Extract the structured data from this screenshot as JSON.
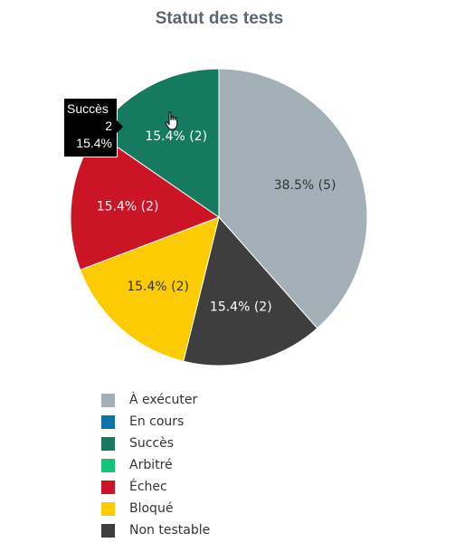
{
  "chart_data": {
    "type": "pie",
    "title": "Statut des tests",
    "slices": [
      {
        "name": "À exécuter",
        "value": 5,
        "color": "#a3b0b7",
        "label": "38.5% (5)"
      },
      {
        "name": "En cours",
        "value": 0,
        "color": "#0e74a8",
        "label": ""
      },
      {
        "name": "Succès",
        "value": 2,
        "color": "#167a61",
        "label": "15.4% (2)"
      },
      {
        "name": "Arbitré",
        "value": 0,
        "color": "#13c47b",
        "label": ""
      },
      {
        "name": "Échec",
        "value": 2,
        "color": "#cc1427",
        "label": "15.4% (2)"
      },
      {
        "name": "Bloqué",
        "value": 2,
        "color": "#fdcb02",
        "label": "15.4% (2)"
      },
      {
        "name": "Non testable",
        "value": 2,
        "color": "#3e3e3e",
        "label": "15.4% (2)"
      }
    ],
    "slice_order": [
      "À exécuter",
      "Non testable",
      "Bloqué",
      "Échec",
      "Succès"
    ],
    "legend_position": "bottom"
  },
  "tooltip": {
    "name": "Succès",
    "count": "2",
    "percent": "15.4%"
  },
  "cursor": "hand-pointer-icon"
}
